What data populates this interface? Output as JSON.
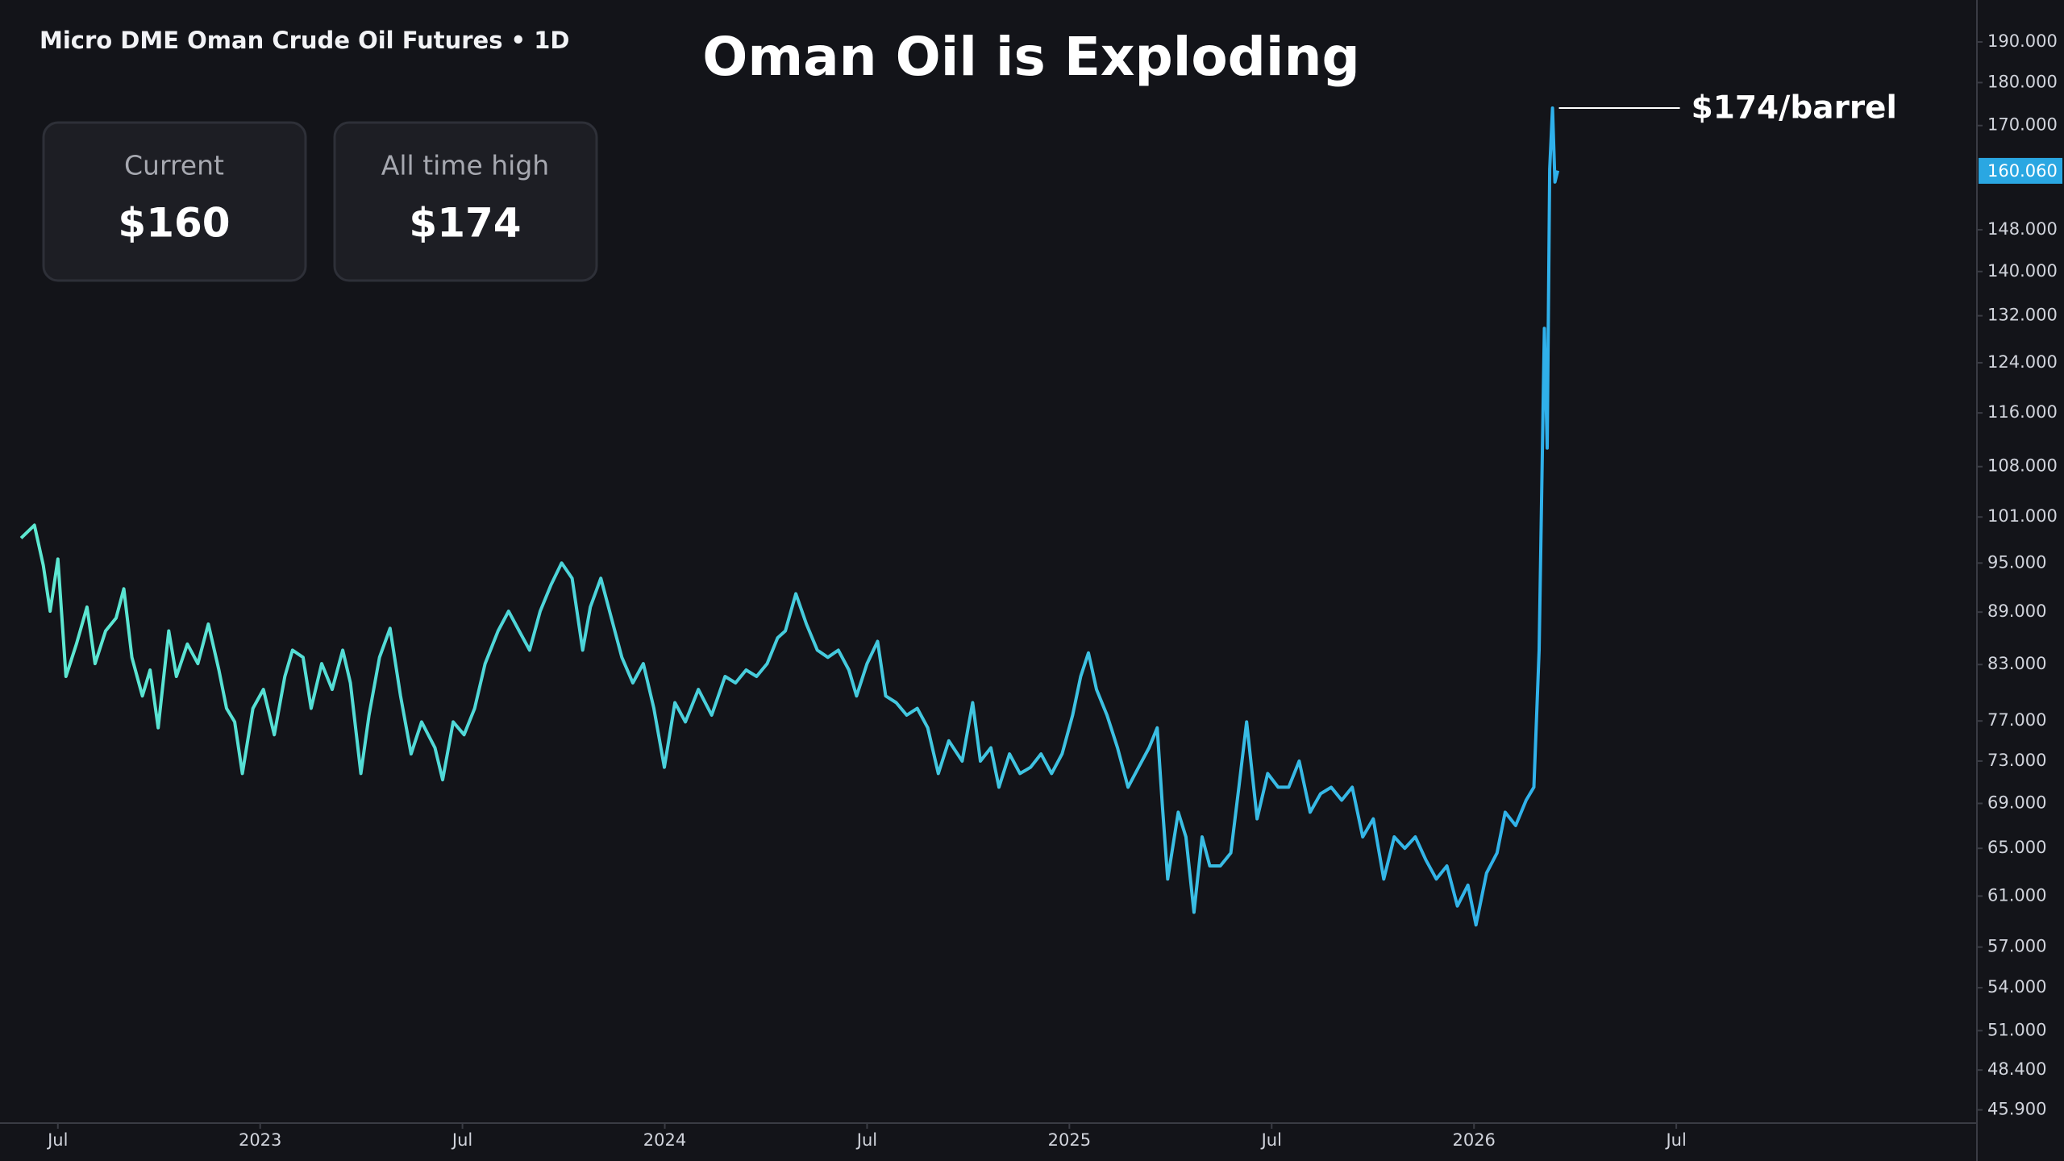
{
  "header": "Micro DME Oman Crude Oil Futures • 1D",
  "cards": [
    {
      "label": "Current",
      "value": "$160"
    },
    {
      "label": "All time high",
      "value": "$174"
    }
  ],
  "chart_data": {
    "type": "line",
    "title": "Oman Oil is Exploding",
    "annotation": "$174/barrel",
    "log_scale": true,
    "grid": false,
    "xlim": [
      2022.357,
      2027.243
    ],
    "xticks": [
      {
        "value": 2022.5,
        "label": "Jul"
      },
      2023,
      {
        "value": 2023.5,
        "label": "Jul"
      },
      2024,
      {
        "value": 2024.5,
        "label": "Jul"
      },
      2025,
      {
        "value": 2025.5,
        "label": "Jul"
      },
      2026,
      {
        "value": 2026.5,
        "label": "Jul"
      }
    ],
    "ylim": [
      45.1,
      200.9
    ],
    "yticks": [
      {
        "value": 190,
        "label": "190.000"
      },
      {
        "value": 180,
        "label": "180.000"
      },
      {
        "value": 170,
        "label": "170.000"
      },
      {
        "value": 148,
        "label": "148.000"
      },
      {
        "value": 140,
        "label": "140.000"
      },
      {
        "value": 132,
        "label": "132.000"
      },
      {
        "value": 124,
        "label": "124.000"
      },
      {
        "value": 116,
        "label": "116.000"
      },
      {
        "value": 108,
        "label": "108.000"
      },
      {
        "value": 101,
        "label": "101.000"
      },
      {
        "value": 95,
        "label": "95.000"
      },
      {
        "value": 89,
        "label": "89.000"
      },
      {
        "value": 83,
        "label": "83.000"
      },
      {
        "value": 77,
        "label": "77.000"
      },
      {
        "value": 73,
        "label": "73.000"
      },
      {
        "value": 69,
        "label": "69.000"
      },
      {
        "value": 65,
        "label": "65.000"
      },
      {
        "value": 61,
        "label": "61.000"
      },
      {
        "value": 57,
        "label": "57.000"
      },
      {
        "value": 54,
        "label": "54.000"
      },
      {
        "value": 51,
        "label": "51.000"
      },
      {
        "value": 48.4,
        "label": "48.400"
      },
      {
        "value": 45.9,
        "label": "45.900"
      }
    ],
    "last_price": {
      "value": 160.06,
      "label": "160.060",
      "color": "#2aa7e2"
    },
    "x": [
      2022.409,
      2022.442,
      2022.464,
      2022.481,
      2022.5,
      2022.52,
      2022.546,
      2022.572,
      2022.592,
      2022.618,
      2022.644,
      2022.663,
      2022.683,
      2022.709,
      2022.728,
      2022.748,
      2022.774,
      2022.793,
      2022.82,
      2022.846,
      2022.872,
      2022.898,
      2022.917,
      2022.937,
      2022.956,
      2022.982,
      2023.008,
      2023.035,
      2023.061,
      2023.08,
      2023.106,
      2023.126,
      2023.152,
      2023.178,
      2023.204,
      2023.223,
      2023.249,
      2023.269,
      2023.295,
      2023.321,
      2023.347,
      2023.373,
      2023.399,
      2023.432,
      2023.451,
      2023.477,
      2023.504,
      2023.53,
      2023.556,
      2023.588,
      2023.614,
      2023.64,
      2023.666,
      2023.692,
      2023.719,
      2023.745,
      2023.771,
      2023.797,
      2023.816,
      2023.842,
      2023.868,
      2023.894,
      2023.921,
      2023.947,
      2023.973,
      2023.999,
      2024.025,
      2024.051,
      2024.083,
      2024.116,
      2024.149,
      2024.175,
      2024.201,
      2024.227,
      2024.253,
      2024.279,
      2024.298,
      2024.324,
      2024.35,
      2024.377,
      2024.403,
      2024.429,
      2024.455,
      2024.474,
      2024.5,
      2024.526,
      2024.546,
      2024.572,
      2024.598,
      2024.624,
      2024.65,
      2024.676,
      2024.702,
      2024.735,
      2024.761,
      2024.78,
      2024.806,
      2024.826,
      2024.852,
      2024.878,
      2024.904,
      2024.93,
      2024.956,
      2024.982,
      2025.008,
      2025.028,
      2025.047,
      2025.067,
      2025.093,
      2025.119,
      2025.145,
      2025.171,
      2025.197,
      2025.217,
      2025.23,
      2025.243,
      2025.269,
      2025.288,
      2025.308,
      2025.328,
      2025.347,
      2025.373,
      2025.399,
      2025.419,
      2025.438,
      2025.464,
      2025.49,
      2025.516,
      2025.542,
      2025.568,
      2025.595,
      2025.621,
      2025.647,
      2025.673,
      2025.699,
      2025.725,
      2025.751,
      2025.777,
      2025.803,
      2025.829,
      2025.855,
      2025.881,
      2025.907,
      2025.933,
      2025.959,
      2025.985,
      2026.005,
      2026.031,
      2026.057,
      2026.077,
      2026.103,
      2026.129,
      2026.148,
      2026.161,
      2026.174,
      2026.181,
      2026.187,
      2026.194,
      2026.2,
      2026.207
    ],
    "series": [
      {
        "name": "Micro DME Oman Crude Oil Futures",
        "gradient": [
          "#5ee9d0",
          "#2fb0ea"
        ],
        "values": [
          98.2,
          99.9,
          94.7,
          89.1,
          95.5,
          81.7,
          85.3,
          89.6,
          83.1,
          86.8,
          88.3,
          91.8,
          83.8,
          79.6,
          82.4,
          76.3,
          86.8,
          81.7,
          85.3,
          83.1,
          87.6,
          82.4,
          78.3,
          76.9,
          71.8,
          78.3,
          80.3,
          75.6,
          81.7,
          84.6,
          83.8,
          78.3,
          83.1,
          80.3,
          84.6,
          81.0,
          71.8,
          77.6,
          83.8,
          87.1,
          79.6,
          73.7,
          76.9,
          74.3,
          71.2,
          76.9,
          75.6,
          78.3,
          83.1,
          86.8,
          89.1,
          86.8,
          84.6,
          89.1,
          92.3,
          95.0,
          93.1,
          84.6,
          89.6,
          93.1,
          88.3,
          83.8,
          81.0,
          83.1,
          78.3,
          72.4,
          78.9,
          76.9,
          80.3,
          77.6,
          81.7,
          81.0,
          82.4,
          81.7,
          83.1,
          86.0,
          86.8,
          91.2,
          87.6,
          84.6,
          83.8,
          84.6,
          82.4,
          79.6,
          83.1,
          85.6,
          79.6,
          78.9,
          77.6,
          78.3,
          76.3,
          71.8,
          75.0,
          73.0,
          78.9,
          73.0,
          74.3,
          70.5,
          73.7,
          71.8,
          72.4,
          73.7,
          71.8,
          73.7,
          77.6,
          81.7,
          84.3,
          80.3,
          77.6,
          74.3,
          70.5,
          72.4,
          74.3,
          76.3,
          68.7,
          62.4,
          68.2,
          66.0,
          59.7,
          66.0,
          63.5,
          63.5,
          64.6,
          70.5,
          76.9,
          67.6,
          71.8,
          70.5,
          70.5,
          73.0,
          68.2,
          69.9,
          70.5,
          69.3,
          70.5,
          66.0,
          67.6,
          62.4,
          66.0,
          65.0,
          66.0,
          64.0,
          62.4,
          63.5,
          60.2,
          61.9,
          58.7,
          62.9,
          64.6,
          68.2,
          67.0,
          69.3,
          70.5,
          84.6,
          129.8,
          110.7,
          160.4,
          174.0,
          157.7,
          160.1
        ]
      }
    ]
  }
}
